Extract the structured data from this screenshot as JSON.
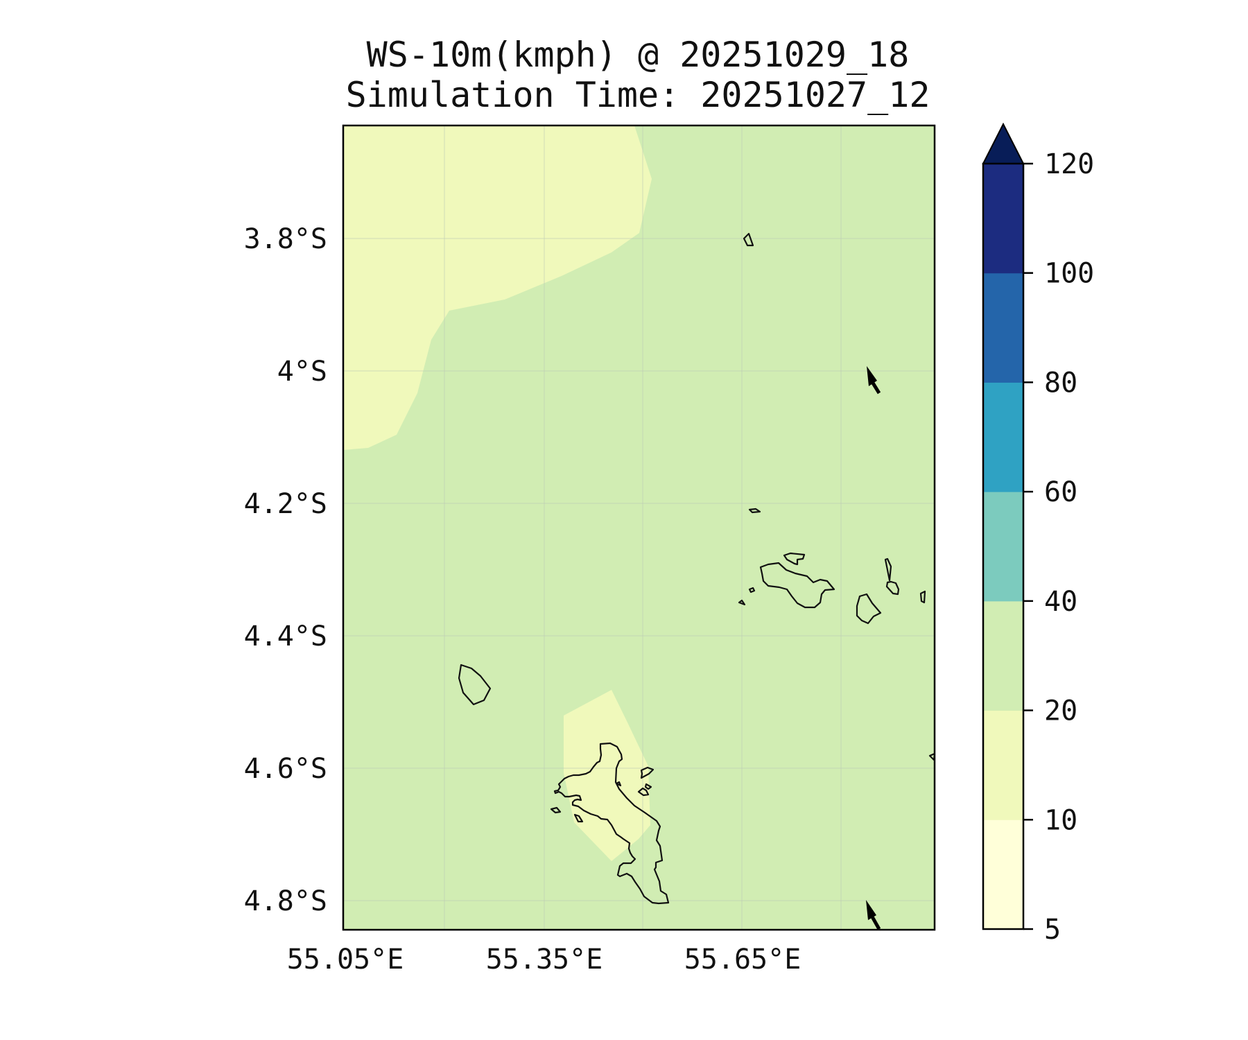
{
  "title_line1": "WS-10m(kmph) @ 20251029_18",
  "title_line2": "Simulation Time: 20251027_12",
  "lat_labels": [
    "3.8°S",
    "4°S",
    "4.2°S",
    "4.4°S",
    "4.6°S",
    "4.8°S"
  ],
  "lon_labels": [
    "55.05°E",
    "55.35°E",
    "55.65°E"
  ],
  "colorbar": {
    "levels": [
      5,
      10,
      20,
      40,
      60,
      80,
      100,
      120
    ],
    "tick_labels": [
      "5",
      "10",
      "20",
      "40",
      "60",
      "80",
      "100",
      "120"
    ],
    "colors": [
      "#ffffd9",
      "#f0f9bb",
      "#d1edb3",
      "#7ccbbe",
      "#2fa2c3",
      "#2465aa",
      "#1c2c80",
      "#081d58"
    ],
    "extend": "max"
  },
  "field_colors": {
    "background_class_20_40": "#d1edb3",
    "class_10_20": "#f0f9bb"
  },
  "wind_arrow_color": "#000000"
}
